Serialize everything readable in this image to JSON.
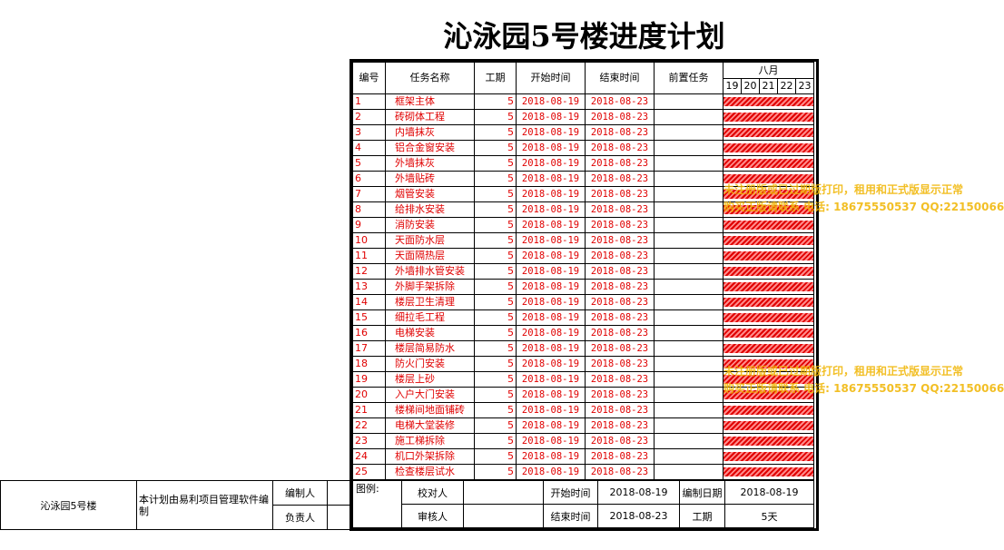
{
  "title": "沁泳园5号楼进度计划",
  "headers": {
    "num": "编号",
    "name": "任务名称",
    "duration": "工期",
    "start": "开始时间",
    "end": "结束时间",
    "pred": "前置任务",
    "month": "八月",
    "days": [
      "19",
      "20",
      "21",
      "22",
      "23"
    ]
  },
  "tasks": [
    {
      "num": "1",
      "name": "框架主体",
      "duration": "5",
      "start": "2018-08-19",
      "end": "2018-08-23"
    },
    {
      "num": "2",
      "name": "砖砌体工程",
      "duration": "5",
      "start": "2018-08-19",
      "end": "2018-08-23"
    },
    {
      "num": "3",
      "name": "内墙抹灰",
      "duration": "5",
      "start": "2018-08-19",
      "end": "2018-08-23"
    },
    {
      "num": "4",
      "name": "铝合金窗安装",
      "duration": "5",
      "start": "2018-08-19",
      "end": "2018-08-23"
    },
    {
      "num": "5",
      "name": "外墙抹灰",
      "duration": "5",
      "start": "2018-08-19",
      "end": "2018-08-23"
    },
    {
      "num": "6",
      "name": "外墙贴砖",
      "duration": "5",
      "start": "2018-08-19",
      "end": "2018-08-23"
    },
    {
      "num": "7",
      "name": "烟管安装",
      "duration": "5",
      "start": "2018-08-19",
      "end": "2018-08-23"
    },
    {
      "num": "8",
      "name": "给排水安装",
      "duration": "5",
      "start": "2018-08-19",
      "end": "2018-08-23"
    },
    {
      "num": "9",
      "name": "消防安装",
      "duration": "5",
      "start": "2018-08-19",
      "end": "2018-08-23"
    },
    {
      "num": "10",
      "name": "天面防水层",
      "duration": "5",
      "start": "2018-08-19",
      "end": "2018-08-23"
    },
    {
      "num": "11",
      "name": "天面隔热层",
      "duration": "5",
      "start": "2018-08-19",
      "end": "2018-08-23"
    },
    {
      "num": "12",
      "name": "外墙排水管安装",
      "duration": "5",
      "start": "2018-08-19",
      "end": "2018-08-23"
    },
    {
      "num": "13",
      "name": "外脚手架拆除",
      "duration": "5",
      "start": "2018-08-19",
      "end": "2018-08-23"
    },
    {
      "num": "14",
      "name": "楼层卫生清理",
      "duration": "5",
      "start": "2018-08-19",
      "end": "2018-08-23"
    },
    {
      "num": "15",
      "name": "细拉毛工程",
      "duration": "5",
      "start": "2018-08-19",
      "end": "2018-08-23"
    },
    {
      "num": "16",
      "name": "电梯安装",
      "duration": "5",
      "start": "2018-08-19",
      "end": "2018-08-23"
    },
    {
      "num": "17",
      "name": "楼层简易防水",
      "duration": "5",
      "start": "2018-08-19",
      "end": "2018-08-23"
    },
    {
      "num": "18",
      "name": "防火门安装",
      "duration": "5",
      "start": "2018-08-19",
      "end": "2018-08-23"
    },
    {
      "num": "19",
      "name": "楼层上砂",
      "duration": "5",
      "start": "2018-08-19",
      "end": "2018-08-23"
    },
    {
      "num": "20",
      "name": "入户大门安装",
      "duration": "5",
      "start": "2018-08-19",
      "end": "2018-08-23"
    },
    {
      "num": "21",
      "name": "楼梯间地面铺砖",
      "duration": "5",
      "start": "2018-08-19",
      "end": "2018-08-23"
    },
    {
      "num": "22",
      "name": "电梯大堂装修",
      "duration": "5",
      "start": "2018-08-19",
      "end": "2018-08-23"
    },
    {
      "num": "23",
      "name": "施工梯拆除",
      "duration": "5",
      "start": "2018-08-19",
      "end": "2018-08-23"
    },
    {
      "num": "24",
      "name": "机口外架拆除",
      "duration": "5",
      "start": "2018-08-19",
      "end": "2018-08-23"
    },
    {
      "num": "25",
      "name": "检查楼层试水",
      "duration": "5",
      "start": "2018-08-19",
      "end": "2018-08-23"
    }
  ],
  "footer": {
    "legend": "图例:",
    "checker": "校对人",
    "reviewer": "审核人",
    "start_label": "开始时间",
    "start_value": "2018-08-19",
    "end_label": "结束时间",
    "end_value": "2018-08-23",
    "compile_date_label": "编制日期",
    "compile_date_value": "2018-08-19",
    "duration_label": "工期",
    "duration_value": "5天"
  },
  "left_block": {
    "project": "沁泳园5号楼",
    "note": "本计划由易利项目管理软件编制",
    "compiler": "编制人",
    "owner": "负责人"
  },
  "watermark": {
    "line1": "未注册版或已过期版打印，租用和正式版显示正常",
    "line2": "购买正版请联系 电话: 18675550537 QQ:22150066"
  },
  "colors": {
    "task_text": "#e00000",
    "bar": "#e00000",
    "watermark": "#f0b400"
  }
}
